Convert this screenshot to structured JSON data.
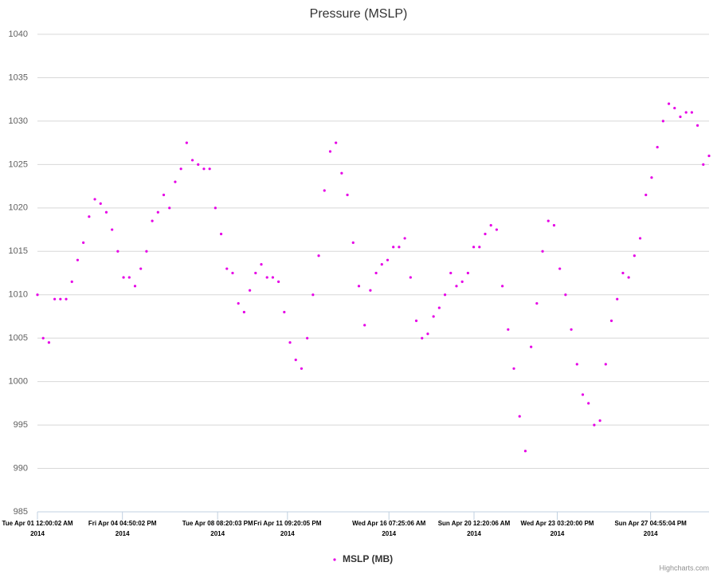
{
  "chart_data": {
    "type": "scatter",
    "title": "Pressure (MSLP)",
    "x": [
      "2014-04-01T00:00",
      "2014-04-01T06:00",
      "2014-04-01T12:00",
      "2014-04-01T18:00",
      "2014-04-02T00:00",
      "2014-04-02T06:00",
      "2014-04-02T12:00",
      "2014-04-02T18:00",
      "2014-04-03T00:00",
      "2014-04-03T06:00",
      "2014-04-03T12:00",
      "2014-04-03T18:00",
      "2014-04-04T00:00",
      "2014-04-04T06:00",
      "2014-04-04T12:00",
      "2014-04-04T18:00",
      "2014-04-05T00:00",
      "2014-04-05T06:00",
      "2014-04-05T12:00",
      "2014-04-05T18:00",
      "2014-04-06T00:00",
      "2014-04-06T06:00",
      "2014-04-06T12:00",
      "2014-04-06T18:00",
      "2014-04-07T00:00",
      "2014-04-07T06:00",
      "2014-04-07T12:00",
      "2014-04-07T18:00",
      "2014-04-08T00:00",
      "2014-04-08T06:00",
      "2014-04-08T12:00",
      "2014-04-08T18:00",
      "2014-04-09T00:00",
      "2014-04-09T06:00",
      "2014-04-09T12:00",
      "2014-04-09T18:00",
      "2014-04-10T00:00",
      "2014-04-10T06:00",
      "2014-04-10T12:00",
      "2014-04-10T18:00",
      "2014-04-11T00:00",
      "2014-04-11T06:00",
      "2014-04-11T12:00",
      "2014-04-11T18:00",
      "2014-04-12T00:00",
      "2014-04-12T06:00",
      "2014-04-12T12:00",
      "2014-04-12T18:00",
      "2014-04-13T00:00",
      "2014-04-13T06:00",
      "2014-04-13T12:00",
      "2014-04-13T18:00",
      "2014-04-14T00:00",
      "2014-04-14T06:00",
      "2014-04-14T12:00",
      "2014-04-14T18:00",
      "2014-04-15T00:00",
      "2014-04-15T06:00",
      "2014-04-15T12:00",
      "2014-04-15T18:00",
      "2014-04-16T00:00",
      "2014-04-16T06:00",
      "2014-04-16T12:00",
      "2014-04-16T18:00",
      "2014-04-17T00:00",
      "2014-04-17T06:00",
      "2014-04-17T12:00",
      "2014-04-17T18:00",
      "2014-04-18T00:00",
      "2014-04-18T06:00",
      "2014-04-18T12:00",
      "2014-04-18T18:00",
      "2014-04-19T00:00",
      "2014-04-19T06:00",
      "2014-04-19T12:00",
      "2014-04-19T18:00",
      "2014-04-20T00:00",
      "2014-04-20T06:00",
      "2014-04-20T12:00",
      "2014-04-20T18:00",
      "2014-04-21T00:00",
      "2014-04-21T06:00",
      "2014-04-21T12:00",
      "2014-04-21T18:00",
      "2014-04-22T00:00",
      "2014-04-22T06:00",
      "2014-04-22T12:00",
      "2014-04-22T18:00",
      "2014-04-23T00:00",
      "2014-04-23T06:00",
      "2014-04-23T12:00",
      "2014-04-23T18:00",
      "2014-04-24T00:00",
      "2014-04-24T06:00",
      "2014-04-24T12:00",
      "2014-04-24T18:00",
      "2014-04-25T00:00",
      "2014-04-25T06:00",
      "2014-04-25T12:00",
      "2014-04-25T18:00",
      "2014-04-26T00:00",
      "2014-04-26T06:00",
      "2014-04-26T12:00",
      "2014-04-26T18:00",
      "2014-04-27T00:00",
      "2014-04-27T06:00",
      "2014-04-27T12:00",
      "2014-04-27T18:00",
      "2014-04-28T00:00",
      "2014-04-28T06:00",
      "2014-04-28T12:00",
      "2014-04-28T18:00",
      "2014-04-29T00:00",
      "2014-04-29T06:00",
      "2014-04-29T12:00",
      "2014-04-29T18:00",
      "2014-04-30T00:00",
      "2014-04-30T06:00"
    ],
    "series": [
      {
        "name": "MSLP (MB)",
        "color": "#e600e6",
        "values": [
          1010,
          1005,
          1004.5,
          1009.5,
          1009.5,
          1009.5,
          1011.5,
          1014,
          1016,
          1019,
          1021,
          1020.5,
          1019.5,
          1017.5,
          1015,
          1012,
          1012,
          1011,
          1013,
          1015,
          1018.5,
          1019.5,
          1021.5,
          1020,
          1023,
          1024.5,
          1027.5,
          1025.5,
          1025,
          1024.5,
          1024.5,
          1020,
          1017,
          1013,
          1012.5,
          1009,
          1008,
          1010.5,
          1012.5,
          1013.5,
          1012,
          1012,
          1011.5,
          1008,
          1004.5,
          1002.5,
          1001.5,
          1005,
          1010,
          1014.5,
          1022,
          1026.5,
          1027.5,
          1024,
          1021.5,
          1016,
          1011,
          1006.5,
          1010.5,
          1012.5,
          1013.5,
          1014,
          1015.5,
          1015.5,
          1016.5,
          1012,
          1007,
          1005,
          1005.5,
          1007.5,
          1008.5,
          1010,
          1012.5,
          1011,
          1011.5,
          1012.5,
          1015.5,
          1015.5,
          1017,
          1018,
          1017.5,
          1011,
          1006,
          1001.5,
          996,
          992,
          1004,
          1009,
          1015,
          1018.5,
          1018,
          1013,
          1010,
          1006,
          1002,
          998.5,
          997.5,
          995,
          995.5,
          1002,
          1007,
          1009.5,
          1012.5,
          1012,
          1014.5,
          1016.5,
          1021.5,
          1023.5,
          1027,
          1030,
          1032,
          1031.5,
          1030.5,
          1031,
          1031,
          1029.5,
          1025,
          1026
        ]
      }
    ],
    "xlim": [
      "2014-04-01T00:00",
      "2014-04-30T06:00"
    ],
    "xticks": [
      {
        "value": "2014-04-01T00:00:02",
        "label": "Tue Apr 01 12:00:02 AM",
        "year": "2014"
      },
      {
        "value": "2014-04-04T16:50:02",
        "label": "Fri Apr 04 04:50:02 PM",
        "year": "2014"
      },
      {
        "value": "2014-04-08T20:20:03",
        "label": "Tue Apr 08 08:20:03 PM",
        "year": "2014"
      },
      {
        "value": "2014-04-11T21:20:05",
        "label": "Fri Apr 11 09:20:05 PM",
        "year": "2014"
      },
      {
        "value": "2014-04-16T07:25:06",
        "label": "Wed Apr 16 07:25:06 AM",
        "year": "2014"
      },
      {
        "value": "2014-04-20T00:20:06",
        "label": "Sun Apr 20 12:20:06 AM",
        "year": "2014"
      },
      {
        "value": "2014-04-23T15:20:00",
        "label": "Wed Apr 23 03:20:00 PM",
        "year": "2014"
      },
      {
        "value": "2014-04-27T16:55:04",
        "label": "Sun Apr 27 04:55:04 PM",
        "year": "2014"
      }
    ],
    "ylim": [
      985,
      1040
    ],
    "yticks": [
      985,
      990,
      995,
      1000,
      1005,
      1010,
      1015,
      1020,
      1025,
      1030,
      1035,
      1040
    ],
    "grid": true,
    "legend": "bottom",
    "credits": "Highcharts.com"
  }
}
